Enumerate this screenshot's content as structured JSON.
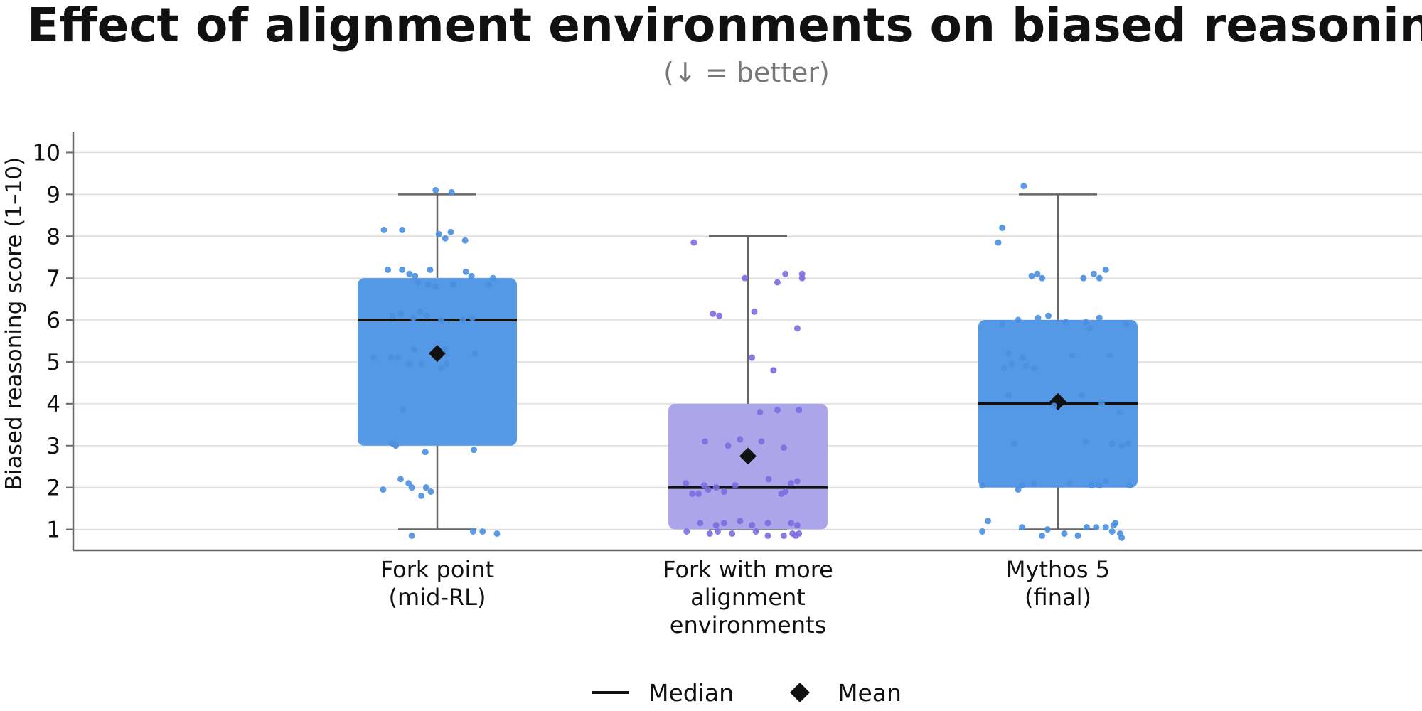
{
  "chart_data": {
    "type": "box",
    "title": "Effect of alignment environments on biased reasoning",
    "subtitle": "(↓ = better)",
    "ylabel": "Biased reasoning score (1–10)",
    "xlabel": "",
    "ylim": [
      0.5,
      10.5
    ],
    "yticks": [
      1,
      2,
      3,
      4,
      5,
      6,
      7,
      8,
      9,
      10
    ],
    "grid": "horizontal",
    "legend": {
      "placement": "bottom-center",
      "items": [
        {
          "label": "Median",
          "marker": "line"
        },
        {
          "label": "Mean",
          "marker": "diamond"
        }
      ]
    },
    "categories": [
      {
        "lines": [
          "Fork point",
          "(mid-RL)"
        ],
        "color": "#5599e6",
        "point_color": "#4a8fe0",
        "whisker_low": 1,
        "q1": 3,
        "median": 6,
        "q3": 7,
        "whisker_high": 9,
        "mean": 5.2,
        "points": [
          {
            "dx": -0.02,
            "y": 9.1
          },
          {
            "dx": 0.18,
            "y": 9.05
          },
          {
            "dx": -0.67,
            "y": 8.15
          },
          {
            "dx": -0.44,
            "y": 8.15
          },
          {
            "dx": 0.02,
            "y": 8.05
          },
          {
            "dx": 0.17,
            "y": 8.1
          },
          {
            "dx": 0.1,
            "y": 7.95
          },
          {
            "dx": 0.35,
            "y": 7.9
          },
          {
            "dx": -0.62,
            "y": 7.2
          },
          {
            "dx": -0.44,
            "y": 7.2
          },
          {
            "dx": -0.35,
            "y": 7.1
          },
          {
            "dx": -0.28,
            "y": 7.05
          },
          {
            "dx": -0.09,
            "y": 7.2
          },
          {
            "dx": 0.36,
            "y": 7.15
          },
          {
            "dx": 0.43,
            "y": 7.05
          },
          {
            "dx": 0.7,
            "y": 7.0
          },
          {
            "dx": -0.24,
            "y": 6.9
          },
          {
            "dx": -0.11,
            "y": 6.85
          },
          {
            "dx": -0.02,
            "y": 6.8
          },
          {
            "dx": 0.2,
            "y": 6.85
          },
          {
            "dx": 0.65,
            "y": 6.85
          },
          {
            "dx": -0.56,
            "y": 6.1
          },
          {
            "dx": -0.46,
            "y": 6.15
          },
          {
            "dx": -0.3,
            "y": 6.05
          },
          {
            "dx": -0.21,
            "y": 6.2
          },
          {
            "dx": -0.13,
            "y": 6.1
          },
          {
            "dx": 0.05,
            "y": 6.0
          },
          {
            "dx": 0.32,
            "y": 6.0
          },
          {
            "dx": 0.44,
            "y": 6.05
          },
          {
            "dx": -0.29,
            "y": 5.3
          },
          {
            "dx": 0.1,
            "y": 5.3
          },
          {
            "dx": -0.8,
            "y": 5.1
          },
          {
            "dx": -0.58,
            "y": 5.1
          },
          {
            "dx": -0.49,
            "y": 5.1
          },
          {
            "dx": 0.47,
            "y": 5.2
          },
          {
            "dx": -0.35,
            "y": 4.95
          },
          {
            "dx": -0.2,
            "y": 4.95
          },
          {
            "dx": 0.12,
            "y": 4.95
          },
          {
            "dx": 0.05,
            "y": 4.85
          },
          {
            "dx": -0.43,
            "y": 3.85
          },
          {
            "dx": -0.56,
            "y": 3.05
          },
          {
            "dx": -0.52,
            "y": 3.0
          },
          {
            "dx": -0.15,
            "y": 2.85
          },
          {
            "dx": 0.46,
            "y": 2.9
          },
          {
            "dx": -0.46,
            "y": 2.2
          },
          {
            "dx": -0.36,
            "y": 2.1
          },
          {
            "dx": -0.32,
            "y": 2.0
          },
          {
            "dx": -0.14,
            "y": 2.0
          },
          {
            "dx": -0.08,
            "y": 1.9
          },
          {
            "dx": -0.68,
            "y": 1.95
          },
          {
            "dx": -0.2,
            "y": 1.8
          },
          {
            "dx": -0.32,
            "y": 0.85
          },
          {
            "dx": 0.45,
            "y": 0.95
          },
          {
            "dx": 0.57,
            "y": 0.95
          },
          {
            "dx": 0.75,
            "y": 0.9
          }
        ]
      },
      {
        "lines": [
          "Fork with more",
          "alignment",
          "environments"
        ],
        "color": "#ada5ea",
        "point_color": "#7b6ee0",
        "whisker_low": 1,
        "q1": 1,
        "median": 2,
        "q3": 4,
        "whisker_high": 8,
        "mean": 2.75,
        "points": [
          {
            "dx": -0.68,
            "y": 7.85
          },
          {
            "dx": -0.04,
            "y": 7.0
          },
          {
            "dx": 0.47,
            "y": 7.1
          },
          {
            "dx": 0.68,
            "y": 7.1
          },
          {
            "dx": 0.68,
            "y": 7.0
          },
          {
            "dx": 0.37,
            "y": 6.9
          },
          {
            "dx": -0.44,
            "y": 6.15
          },
          {
            "dx": -0.36,
            "y": 6.1
          },
          {
            "dx": 0.08,
            "y": 6.2
          },
          {
            "dx": 0.62,
            "y": 5.8
          },
          {
            "dx": 0.05,
            "y": 5.1
          },
          {
            "dx": 0.32,
            "y": 4.8
          },
          {
            "dx": 0.15,
            "y": 3.8
          },
          {
            "dx": 0.37,
            "y": 3.85
          },
          {
            "dx": 0.64,
            "y": 3.85
          },
          {
            "dx": -0.54,
            "y": 3.1
          },
          {
            "dx": -0.25,
            "y": 3.0
          },
          {
            "dx": -0.1,
            "y": 3.15
          },
          {
            "dx": 0.17,
            "y": 3.1
          },
          {
            "dx": 0.45,
            "y": 2.95
          },
          {
            "dx": -0.78,
            "y": 2.1
          },
          {
            "dx": -0.55,
            "y": 2.05
          },
          {
            "dx": -0.4,
            "y": 2.0
          },
          {
            "dx": -0.16,
            "y": 2.05
          },
          {
            "dx": 0.26,
            "y": 2.2
          },
          {
            "dx": 0.54,
            "y": 2.1
          },
          {
            "dx": 0.62,
            "y": 2.15
          },
          {
            "dx": -0.7,
            "y": 1.85
          },
          {
            "dx": -0.62,
            "y": 1.85
          },
          {
            "dx": -0.3,
            "y": 1.9
          },
          {
            "dx": 0.42,
            "y": 1.85
          },
          {
            "dx": 0.47,
            "y": 1.9
          },
          {
            "dx": -0.5,
            "y": 1.95
          },
          {
            "dx": -0.6,
            "y": 1.15
          },
          {
            "dx": -0.4,
            "y": 1.1
          },
          {
            "dx": -0.3,
            "y": 1.15
          },
          {
            "dx": -0.1,
            "y": 1.2
          },
          {
            "dx": 0.05,
            "y": 1.1
          },
          {
            "dx": 0.25,
            "y": 1.15
          },
          {
            "dx": 0.54,
            "y": 1.15
          },
          {
            "dx": 0.62,
            "y": 1.1
          },
          {
            "dx": -0.77,
            "y": 0.95
          },
          {
            "dx": -0.48,
            "y": 0.9
          },
          {
            "dx": -0.38,
            "y": 0.95
          },
          {
            "dx": -0.2,
            "y": 0.9
          },
          {
            "dx": 0.1,
            "y": 0.95
          },
          {
            "dx": 0.25,
            "y": 0.85
          },
          {
            "dx": 0.45,
            "y": 0.85
          },
          {
            "dx": 0.56,
            "y": 0.9
          },
          {
            "dx": 0.64,
            "y": 0.9
          },
          {
            "dx": 0.6,
            "y": 0.85
          }
        ]
      },
      {
        "lines": [
          "Mythos 5",
          "(final)"
        ],
        "color": "#5599e6",
        "point_color": "#4a8fe0",
        "whisker_low": 1,
        "q1": 2,
        "median": 4,
        "q3": 6,
        "whisker_high": 9,
        "mean": 4.05,
        "points": [
          {
            "dx": -0.43,
            "y": 9.2
          },
          {
            "dx": -0.7,
            "y": 8.2
          },
          {
            "dx": -0.75,
            "y": 7.85
          },
          {
            "dx": -0.33,
            "y": 7.05
          },
          {
            "dx": -0.26,
            "y": 7.1
          },
          {
            "dx": -0.2,
            "y": 7.0
          },
          {
            "dx": 0.32,
            "y": 7.0
          },
          {
            "dx": 0.45,
            "y": 7.1
          },
          {
            "dx": 0.52,
            "y": 7.0
          },
          {
            "dx": 0.6,
            "y": 7.2
          },
          {
            "dx": -0.5,
            "y": 6.0
          },
          {
            "dx": -0.25,
            "y": 6.05
          },
          {
            "dx": -0.12,
            "y": 6.1
          },
          {
            "dx": 0.1,
            "y": 5.95
          },
          {
            "dx": 0.35,
            "y": 5.95
          },
          {
            "dx": 0.52,
            "y": 6.05
          },
          {
            "dx": -0.7,
            "y": 5.9
          },
          {
            "dx": 0.86,
            "y": 5.9
          },
          {
            "dx": 0.4,
            "y": 5.8
          },
          {
            "dx": -0.62,
            "y": 5.2
          },
          {
            "dx": -0.44,
            "y": 5.1
          },
          {
            "dx": 0.18,
            "y": 5.15
          },
          {
            "dx": 0.65,
            "y": 5.15
          },
          {
            "dx": -0.58,
            "y": 4.95
          },
          {
            "dx": -0.4,
            "y": 4.9
          },
          {
            "dx": -0.3,
            "y": 4.85
          },
          {
            "dx": -0.68,
            "y": 4.85
          },
          {
            "dx": -0.62,
            "y": 4.2
          },
          {
            "dx": 0.3,
            "y": 4.2
          },
          {
            "dx": 0.55,
            "y": 4.0
          },
          {
            "dx": -0.05,
            "y": 3.95
          },
          {
            "dx": 0.78,
            "y": 3.8
          },
          {
            "dx": -0.55,
            "y": 3.05
          },
          {
            "dx": 0.35,
            "y": 3.1
          },
          {
            "dx": 0.68,
            "y": 3.05
          },
          {
            "dx": 0.8,
            "y": 3.0
          },
          {
            "dx": 0.88,
            "y": 3.05
          },
          {
            "dx": -0.95,
            "y": 2.05
          },
          {
            "dx": -0.45,
            "y": 2.05
          },
          {
            "dx": -0.3,
            "y": 2.1
          },
          {
            "dx": 0.15,
            "y": 2.1
          },
          {
            "dx": 0.42,
            "y": 2.05
          },
          {
            "dx": 0.52,
            "y": 2.05
          },
          {
            "dx": 0.6,
            "y": 2.15
          },
          {
            "dx": 0.9,
            "y": 2.05
          },
          {
            "dx": -0.5,
            "y": 1.95
          },
          {
            "dx": -0.45,
            "y": 1.05
          },
          {
            "dx": -0.13,
            "y": 1.0
          },
          {
            "dx": 0.36,
            "y": 1.05
          },
          {
            "dx": 0.48,
            "y": 1.05
          },
          {
            "dx": 0.6,
            "y": 1.05
          },
          {
            "dx": 0.7,
            "y": 1.1
          },
          {
            "dx": 0.72,
            "y": 1.15
          },
          {
            "dx": -0.88,
            "y": 1.2
          },
          {
            "dx": -0.95,
            "y": 0.95
          },
          {
            "dx": -0.2,
            "y": 0.85
          },
          {
            "dx": 0.08,
            "y": 0.9
          },
          {
            "dx": 0.25,
            "y": 0.85
          },
          {
            "dx": 0.68,
            "y": 0.95
          },
          {
            "dx": 0.78,
            "y": 0.9
          },
          {
            "dx": 0.8,
            "y": 0.8
          }
        ]
      }
    ],
    "colors": {
      "axis": "#666666",
      "grid": "#dedede",
      "whisker": "#666666",
      "median": "#111111",
      "mean": "#111111"
    }
  }
}
